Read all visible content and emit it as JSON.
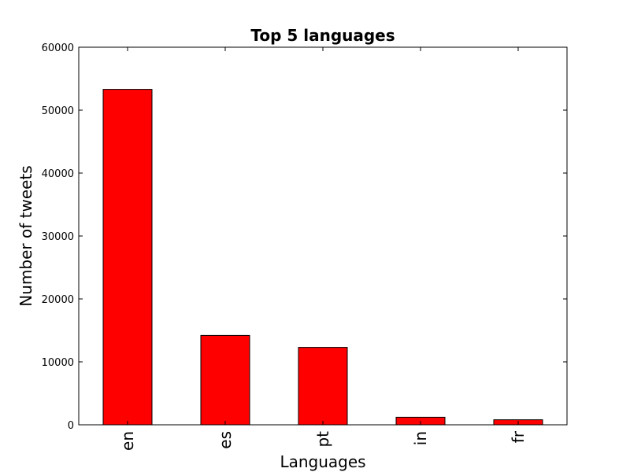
{
  "chart_data": {
    "type": "bar",
    "title": "Top 5 languages",
    "xlabel": "Languages",
    "ylabel": "Number of tweets",
    "categories": [
      "en",
      "es",
      "pt",
      "in",
      "fr"
    ],
    "values": [
      53300,
      14200,
      12300,
      1200,
      800
    ],
    "ylim": [
      0,
      60000
    ],
    "yticks": [
      0,
      10000,
      20000,
      30000,
      40000,
      50000,
      60000
    ],
    "ytick_labels": [
      "0",
      "10000",
      "20000",
      "30000",
      "40000",
      "50000",
      "60000"
    ],
    "bar_color": "#ff0000",
    "grid": false,
    "legend": "none"
  }
}
